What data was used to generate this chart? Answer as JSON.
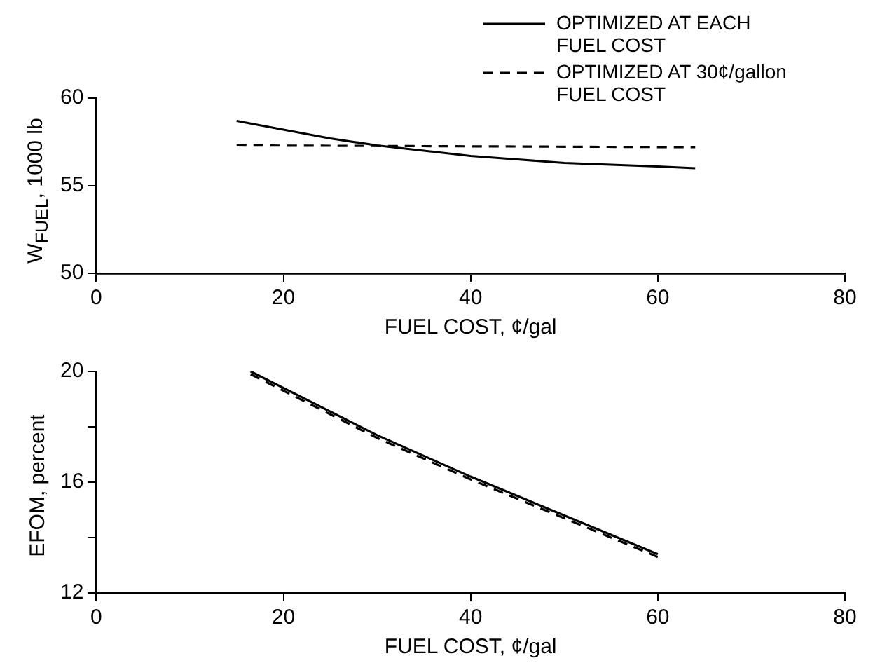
{
  "chart_data": [
    {
      "type": "line",
      "xlabel": "FUEL COST, ¢/gal",
      "ylabel": "W$_{FUEL}$, 1000 lb",
      "xlim": [
        0,
        80
      ],
      "xticks": [
        0,
        20,
        40,
        60,
        80
      ],
      "ylim": [
        50,
        60
      ],
      "yticks": [
        50,
        55,
        60
      ],
      "grid": false,
      "legend": "top right",
      "marker": "none",
      "series": [
        {
          "name": "OPTIMIZED AT EACH FUEL COST",
          "color": "#000000",
          "line_style": "solid",
          "x": [
            15,
            20,
            25,
            30,
            35,
            40,
            45,
            50,
            55,
            60,
            64
          ],
          "values": [
            58.7,
            58.2,
            57.7,
            57.3,
            57.0,
            56.7,
            56.5,
            56.3,
            56.2,
            56.1,
            56.0
          ]
        },
        {
          "name": "OPTIMIZED AT 30¢/gallon FUEL COST",
          "color": "#000000",
          "line_style": "dashed",
          "x": [
            15,
            64
          ],
          "values": [
            57.3,
            57.2
          ]
        }
      ]
    },
    {
      "type": "line",
      "xlabel": "FUEL COST, ¢/gal",
      "ylabel": "EFOM, percent",
      "xlim": [
        0,
        80
      ],
      "xticks": [
        0,
        20,
        40,
        60,
        80
      ],
      "ylim": [
        12,
        20
      ],
      "yticks": [
        12,
        {
          "value": 14,
          "label": null
        },
        16,
        {
          "value": 18,
          "label": null
        },
        20
      ],
      "grid": false,
      "marker": "none",
      "series": [
        {
          "color": "#000000",
          "line_style": "solid",
          "x": [
            16.5,
            30,
            40,
            60
          ],
          "values": [
            20.0,
            17.7,
            16.2,
            13.4
          ]
        },
        {
          "color": "#000000",
          "line_style": "dashed",
          "x": [
            16.5,
            30,
            40,
            60
          ],
          "values": [
            19.9,
            17.6,
            16.1,
            13.3
          ]
        }
      ]
    }
  ]
}
